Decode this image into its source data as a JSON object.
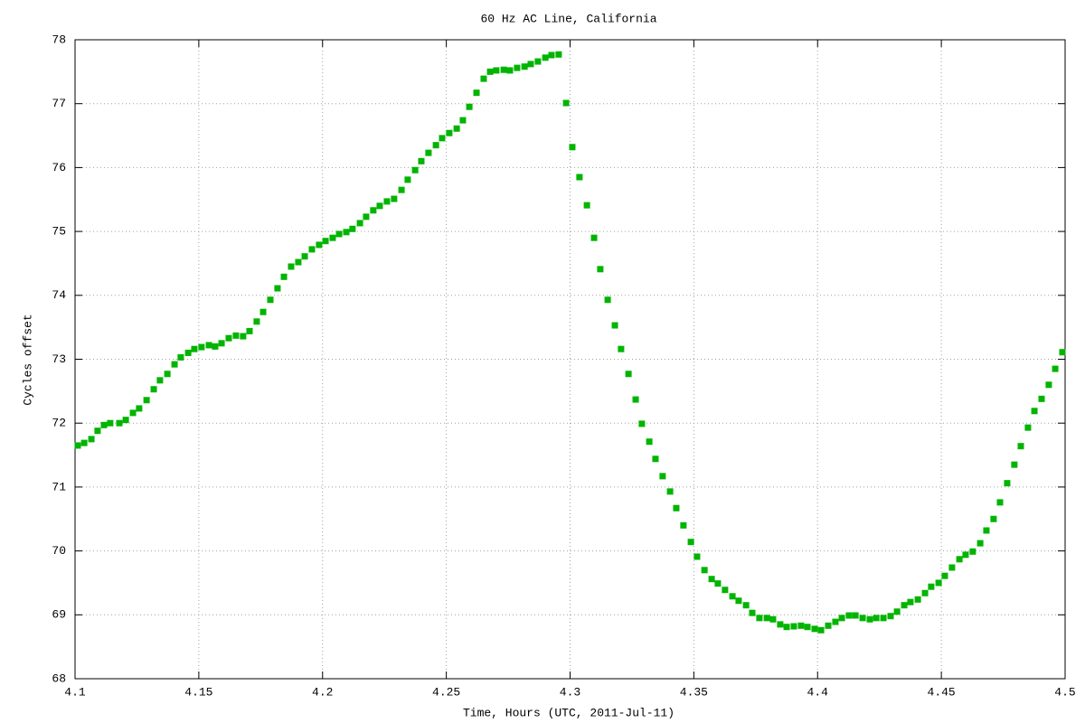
{
  "chart_data": {
    "type": "scatter",
    "title": "60 Hz AC Line, California",
    "xlabel": "Time, Hours (UTC, 2011-Jul-11)",
    "ylabel": "Cycles offset",
    "color": "#00b400",
    "grid": true,
    "xlim": [
      4.1,
      4.5
    ],
    "ylim": [
      68,
      78
    ],
    "xticks": [
      4.1,
      4.15,
      4.2,
      4.25,
      4.3,
      4.35,
      4.4,
      4.45,
      4.5
    ],
    "yticks": [
      68,
      69,
      70,
      71,
      72,
      73,
      74,
      75,
      76,
      77,
      78
    ],
    "x": [
      4.1011,
      4.1037,
      4.1066,
      4.1091,
      4.1117,
      4.1142,
      4.1179,
      4.1205,
      4.1234,
      4.1259,
      4.1289,
      4.1318,
      4.1343,
      4.1373,
      4.1402,
      4.1427,
      4.1457,
      4.1482,
      4.1511,
      4.1541,
      4.1566,
      4.1592,
      4.1621,
      4.165,
      4.1679,
      4.1705,
      4.1734,
      4.176,
      4.1789,
      4.1818,
      4.1844,
      4.1873,
      4.1902,
      4.1928,
      4.1957,
      4.1986,
      4.2012,
      4.2041,
      4.2067,
      4.2096,
      4.2121,
      4.2151,
      4.2176,
      4.2205,
      4.2231,
      4.226,
      4.2289,
      4.2319,
      4.2344,
      4.2374,
      4.2399,
      4.2428,
      4.2458,
      4.2483,
      4.2512,
      4.2542,
      4.2567,
      4.2593,
      4.2622,
      4.2651,
      4.2677,
      4.2702,
      4.2732,
      4.2757,
      4.2786,
      4.2816,
      4.2841,
      4.287,
      4.29,
      4.2925,
      4.2954,
      4.2984,
      4.3009,
      4.3038,
      4.3068,
      4.3097,
      4.3122,
      4.3152,
      4.3181,
      4.3206,
      4.3236,
      4.3265,
      4.329,
      4.332,
      4.3345,
      4.3374,
      4.3404,
      4.3429,
      4.3458,
      4.3488,
      4.3513,
      4.3543,
      4.3572,
      4.3597,
      4.3626,
      4.3656,
      4.3681,
      4.3711,
      4.3736,
      4.3765,
      4.3795,
      4.382,
      4.3849,
      4.3875,
      4.3904,
      4.3933,
      4.3959,
      4.3988,
      4.4014,
      4.4043,
      4.4072,
      4.4098,
      4.4127,
      4.4153,
      4.4182,
      4.4211,
      4.4237,
      4.4266,
      4.4295,
      4.4321,
      4.435,
      4.4375,
      4.4405,
      4.4434,
      4.4459,
      4.4489,
      4.4514,
      4.4543,
      4.4573,
      4.4598,
      4.4627,
      4.4657,
      4.4682,
      4.4711,
      4.4737,
      4.4766,
      4.4795,
      4.4821,
      4.485,
      4.4876,
      4.4905,
      4.4934,
      4.496,
      4.4989
    ],
    "values": [
      71.65,
      71.69,
      71.75,
      71.88,
      71.97,
      72.0,
      72.0,
      72.05,
      72.16,
      72.23,
      72.36,
      72.53,
      72.67,
      72.77,
      72.92,
      73.03,
      73.1,
      73.16,
      73.19,
      73.22,
      73.2,
      73.25,
      73.33,
      73.37,
      73.36,
      73.44,
      73.59,
      73.74,
      73.93,
      74.11,
      74.29,
      74.45,
      74.52,
      74.61,
      74.72,
      74.79,
      74.85,
      74.9,
      74.96,
      74.99,
      75.04,
      75.13,
      75.23,
      75.33,
      75.4,
      75.47,
      75.51,
      75.65,
      75.81,
      75.96,
      76.1,
      76.23,
      76.35,
      76.46,
      76.54,
      76.61,
      76.74,
      76.95,
      77.17,
      77.39,
      77.5,
      77.52,
      77.53,
      77.52,
      77.56,
      77.58,
      77.62,
      77.66,
      77.72,
      77.76,
      77.77,
      77.01,
      76.32,
      75.85,
      75.41,
      74.9,
      74.41,
      73.93,
      73.53,
      73.16,
      72.77,
      72.37,
      71.99,
      71.71,
      71.44,
      71.17,
      70.93,
      70.67,
      70.4,
      70.14,
      69.91,
      69.7,
      69.56,
      69.49,
      69.39,
      69.29,
      69.22,
      69.15,
      69.03,
      68.95,
      68.95,
      68.93,
      68.85,
      68.81,
      68.82,
      68.83,
      68.81,
      68.78,
      68.76,
      68.83,
      68.89,
      68.95,
      68.99,
      68.99,
      68.95,
      68.93,
      68.95,
      68.95,
      68.98,
      69.05,
      69.15,
      69.2,
      69.24,
      69.34,
      69.44,
      69.5,
      69.61,
      69.74,
      69.87,
      69.94,
      69.99,
      70.12,
      70.32,
      70.5,
      70.76,
      71.06,
      71.35,
      71.64,
      71.93,
      72.19,
      72.38,
      72.6,
      72.85,
      73.11
    ]
  }
}
